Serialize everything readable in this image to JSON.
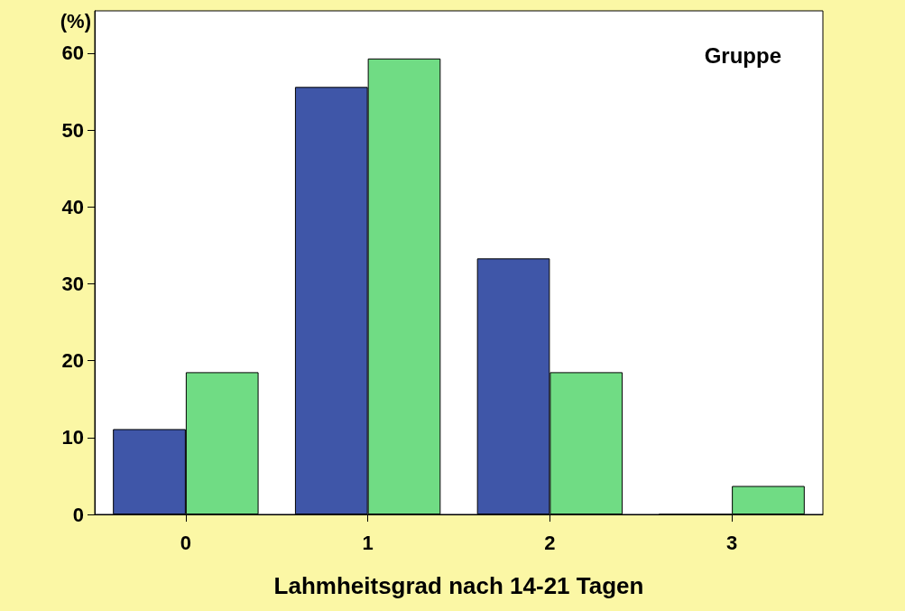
{
  "chart_data": {
    "type": "bar",
    "ylabel": "(%)",
    "xlabel": "Lahmheitsgrad nach 14-21 Tagen",
    "legend_title": "Gruppe",
    "categories": [
      "0",
      "1",
      "2",
      "3"
    ],
    "series": [
      {
        "color": "#3f56a8",
        "values": [
          11.1,
          55.6,
          33.3,
          0
        ]
      },
      {
        "color": "#70dc84",
        "values": [
          18.5,
          59.3,
          18.5,
          3.7
        ]
      }
    ],
    "ylim": [
      0,
      65.5
    ],
    "yticks": [
      0,
      10,
      20,
      30,
      40,
      50,
      60
    ],
    "grid": false
  }
}
